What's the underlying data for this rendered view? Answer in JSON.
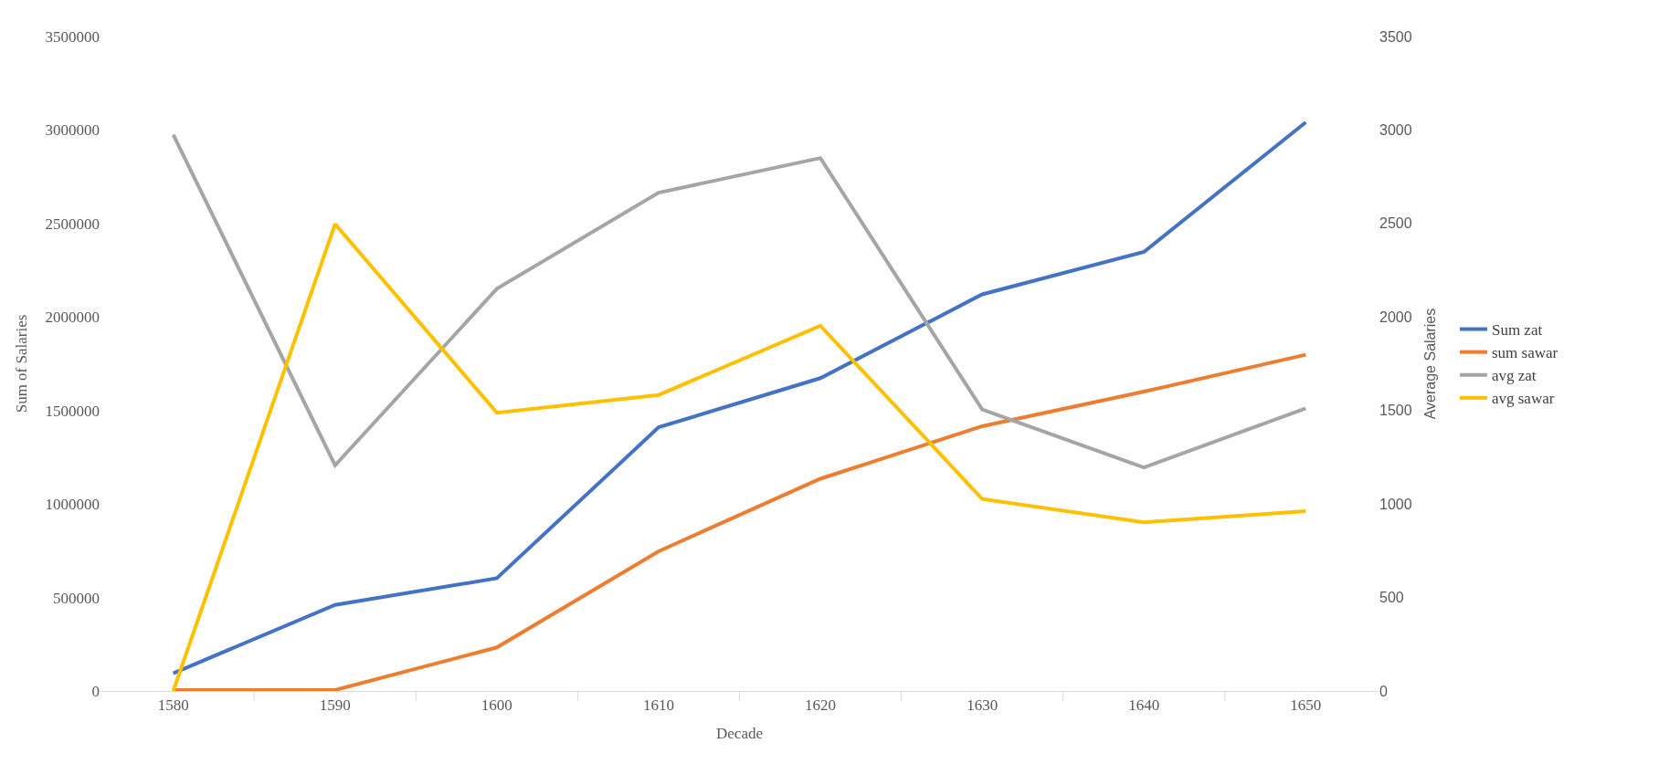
{
  "chart_data": {
    "type": "line",
    "xlabel": "Decade",
    "ylabel": "Sum of Salaries",
    "y2label": "Average Salaries",
    "categories": [
      "1580",
      "1590",
      "1600",
      "1610",
      "1620",
      "1630",
      "1640",
      "1650"
    ],
    "series": [
      {
        "name": "Sum zat",
        "color": "#4472c4",
        "values": [
          95000,
          460000,
          603000,
          1410000,
          1673000,
          2121000,
          2348000,
          3041000
        ]
      },
      {
        "name": "sum sawar",
        "color": "#ed7d31",
        "values": [
          5000,
          5000,
          233000,
          747000,
          1135000,
          1416000,
          1601000,
          1798000
        ]
      },
      {
        "name": "avg zat",
        "color": "#a5a5a5",
        "axis": "y2",
        "values": [
          2975,
          1207,
          2151,
          2665,
          2850,
          1505,
          1195,
          1511
        ]
      },
      {
        "name": "avg sawar",
        "color": "#ffc000",
        "axis": "y2",
        "values": [
          0,
          2497,
          1488,
          1583,
          1953,
          1027,
          902,
          962
        ]
      }
    ],
    "ylim": [
      0,
      3500000
    ],
    "yticks": [
      0,
      500000,
      1000000,
      1500000,
      2000000,
      2500000,
      3000000,
      3500000
    ],
    "y2lim": [
      0,
      3500
    ],
    "y2ticks": [
      0,
      500,
      1000,
      1500,
      2000,
      2500,
      3000,
      3500
    ],
    "legend": "right",
    "marker": "none",
    "line_style": "solid"
  }
}
